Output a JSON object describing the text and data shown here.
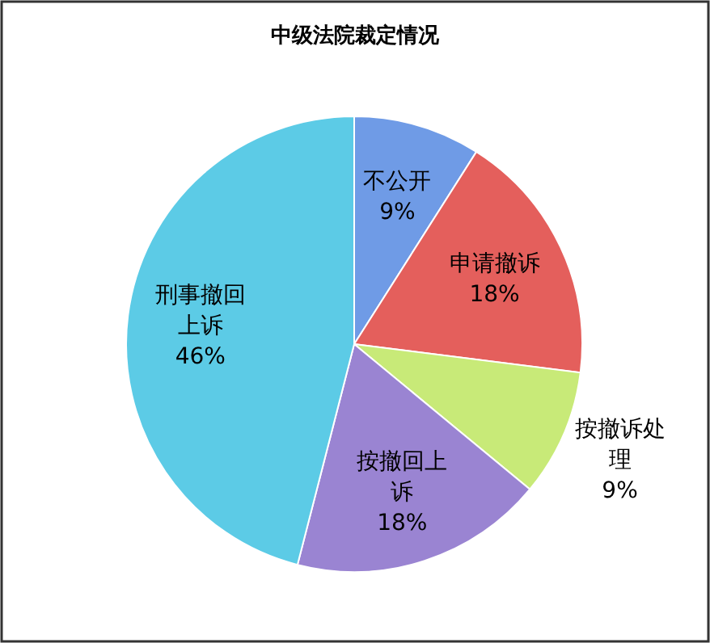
{
  "chart_data": {
    "type": "pie",
    "title": "中级法院裁定情况",
    "categories": [
      "不公开",
      "申请撤诉",
      "按撤诉处理",
      "按撤回上诉",
      "刑事撤回上诉"
    ],
    "values": [
      9,
      18,
      9,
      18,
      46
    ],
    "value_labels": [
      "9%",
      "18%",
      "9%",
      "18%",
      "46%"
    ],
    "colors": [
      "#6f9be6",
      "#e45f5c",
      "#c8ea78",
      "#9a84d2",
      "#5ccbe6"
    ],
    "legend": false
  }
}
